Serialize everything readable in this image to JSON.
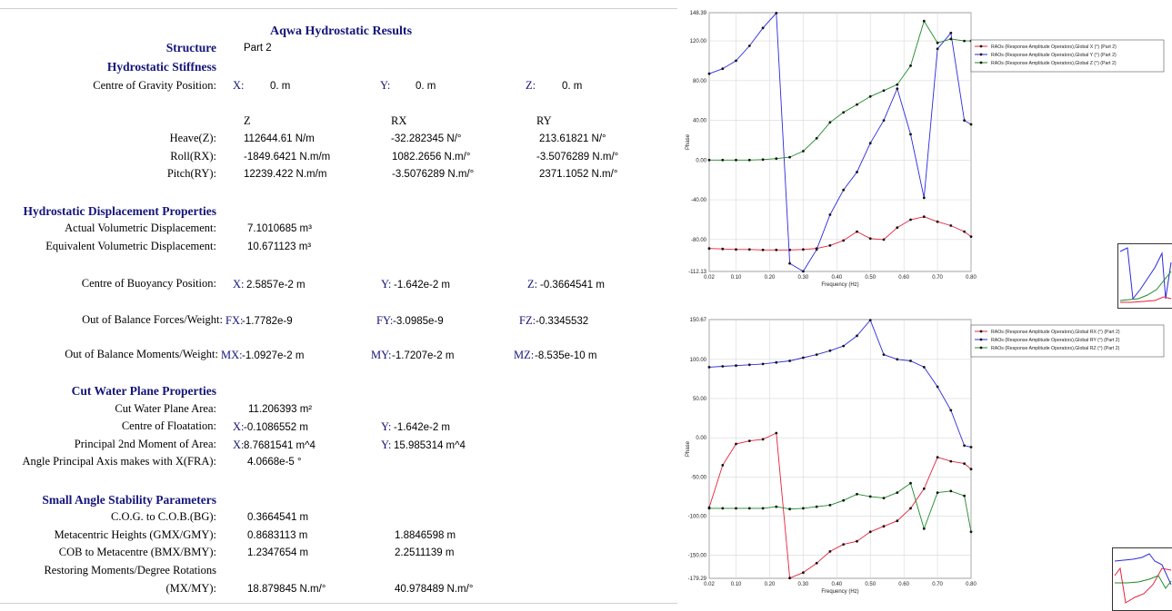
{
  "report": {
    "title": "Aqwa Hydrostatic Results",
    "structure_label": "Structure",
    "structure_value": "Part 2",
    "stiffness": {
      "heading": "Hydrostatic Stiffness",
      "cog_label": "Centre of Gravity Position:",
      "cog": {
        "x_label": "X:",
        "x": "0. m",
        "y_label": "Y:",
        "y": "0. m",
        "z_label": "Z:",
        "z": "0. m"
      },
      "col_headers": [
        "Z",
        "RX",
        "RY"
      ],
      "rows": [
        {
          "label": "Heave(Z):",
          "z": "112644.61 N/m",
          "rx": "-32.282345 N/°",
          "ry": "213.61821 N/°"
        },
        {
          "label": "Roll(RX):",
          "z": "-1849.6421 N.m/m",
          "rx": "1082.2656 N.m/°",
          "ry": "-3.5076289 N.m/°"
        },
        {
          "label": "Pitch(RY):",
          "z": "12239.422 N.m/m",
          "rx": "-3.5076289 N.m/°",
          "ry": "2371.1052 N.m/°"
        }
      ]
    },
    "displacement": {
      "heading": "Hydrostatic Displacement Properties",
      "actual_label": "Actual Volumetric Displacement:",
      "actual": "7.1010685 m³",
      "equiv_label": "Equivalent Volumetric Displacement:",
      "equiv": "10.671123 m³",
      "cob_label": "Centre of Buoyancy Position:",
      "cob": {
        "x_label": "X:",
        "x": "2.5857e-2 m",
        "y_label": "Y:",
        "y": "-1.642e-2 m",
        "z_label": "Z:",
        "z": "-0.3664541 m"
      },
      "forces_label": "Out of Balance Forces/Weight:",
      "forces": {
        "x_label": "FX:",
        "x": "-1.7782e-9",
        "y_label": "FY:",
        "y": "-3.0985e-9",
        "z_label": "FZ:",
        "z": "-0.3345532"
      },
      "moments_label": "Out of Balance Moments/Weight:",
      "moments": {
        "x_label": "MX:",
        "x": "-1.0927e-2 m",
        "y_label": "MY:",
        "y": "-1.7207e-2 m",
        "z_label": "MZ:",
        "z": "-8.535e-10 m"
      }
    },
    "waterplane": {
      "heading": "Cut Water Plane Properties",
      "area_label": "Cut Water Plane Area:",
      "area": "11.206393 m²",
      "cof_label": "Centre of Floatation:",
      "cof": {
        "x_label": "X:",
        "x": "-0.1086552 m",
        "y_label": "Y:",
        "y": "-1.642e-2 m"
      },
      "moment_label": "Principal 2nd Moment of Area:",
      "moment": {
        "x_label": "X:",
        "x": "8.7681541 m^4",
        "y_label": "Y:",
        "y": "15.985314 m^4"
      },
      "angle_label": "Angle Principal Axis makes with X(FRA):",
      "angle": "4.0668e-5 °"
    },
    "stability": {
      "heading": "Small Angle Stability Parameters",
      "bg_label": "C.O.G. to C.O.B.(BG):",
      "bg": "0.3664541 m",
      "gm_label": "Metacentric Heights (GMX/GMY):",
      "gmx": "0.8683113 m",
      "gmy": "1.8846598 m",
      "bm_label": "COB to Metacentre (BMX/BMY):",
      "bmx": "1.2347654 m",
      "bmy": "2.2511139 m",
      "restoring_label_1": "Restoring Moments/Degree Rotations",
      "restoring_label_2": "(MX/MY):",
      "mx": "18.879845 N.m/°",
      "my": "40.978489 N.m/°"
    }
  },
  "chart_data": [
    {
      "type": "line",
      "xlabel": "Frequency (Hz)",
      "ylabel": "Phase",
      "xlim": [
        0.02,
        0.8
      ],
      "ylim": [
        -112.13,
        148.39
      ],
      "x_ticks": [
        "0.02",
        "0.10",
        "0.20",
        "0.30",
        "0.40",
        "0.50",
        "0.60",
        "0.70",
        "0.80"
      ],
      "y_ticks": [
        "148.39",
        "120.00",
        "80.00",
        "40.00",
        "0.00",
        "-40.00",
        "-80.00",
        "-112.13"
      ],
      "legend_position": "top-right",
      "series": [
        {
          "name": "RAOs (Response Amplitude Operators),Global X (°) (Part 2)",
          "color": "#e8203a",
          "x": [
            0.02,
            0.06,
            0.1,
            0.14,
            0.18,
            0.22,
            0.26,
            0.3,
            0.34,
            0.38,
            0.42,
            0.46,
            0.5,
            0.54,
            0.58,
            0.62,
            0.66,
            0.7,
            0.74,
            0.78,
            0.8
          ],
          "y": [
            -89,
            -89.5,
            -90,
            -90,
            -90.5,
            -90.5,
            -90.5,
            -90,
            -89,
            -86,
            -81,
            -72,
            -79,
            -80,
            -68,
            -60,
            -57,
            -62,
            -66,
            -72,
            -77
          ]
        },
        {
          "name": "RAOs (Response Amplitude Operators),Global Y (°) (Part 2)",
          "color": "#2a2ae0",
          "x": [
            0.02,
            0.06,
            0.1,
            0.14,
            0.18,
            0.22,
            0.26,
            0.3,
            0.34,
            0.38,
            0.42,
            0.46,
            0.5,
            0.54,
            0.58,
            0.62,
            0.66,
            0.7,
            0.74,
            0.78,
            0.8
          ],
          "y": [
            87,
            92,
            100,
            115,
            133,
            148,
            -104,
            -112,
            -90,
            -55,
            -30,
            -12,
            17,
            40,
            72,
            26,
            -38,
            112,
            128,
            40,
            36
          ]
        },
        {
          "name": "RAOs (Response Amplitude Operators),Global Z (°) (Part 2)",
          "color": "#1f8a2a",
          "x": [
            0.02,
            0.06,
            0.1,
            0.14,
            0.18,
            0.22,
            0.26,
            0.3,
            0.34,
            0.38,
            0.42,
            0.46,
            0.5,
            0.54,
            0.58,
            0.62,
            0.66,
            0.7,
            0.74,
            0.78,
            0.8
          ],
          "y": [
            0,
            0,
            0,
            0,
            0.5,
            1.5,
            3,
            9,
            22,
            38,
            48,
            56,
            64,
            70,
            76,
            95,
            140,
            118,
            122,
            120,
            120
          ]
        }
      ]
    },
    {
      "type": "line",
      "xlabel": "Frequency (Hz)",
      "ylabel": "Phase",
      "xlim": [
        0.02,
        0.8
      ],
      "ylim": [
        -179.29,
        150.67
      ],
      "x_ticks": [
        "0.02",
        "0.10",
        "0.20",
        "0.30",
        "0.40",
        "0.50",
        "0.60",
        "0.70",
        "0.80"
      ],
      "y_ticks": [
        "150.67",
        "100.00",
        "50.00",
        "0.00",
        "-50.00",
        "-100.00",
        "-150.00",
        "-179.29"
      ],
      "legend_position": "top-right",
      "series": [
        {
          "name": "RAOs (Response Amplitude Operators),Global RX (°) (Part 2)",
          "color": "#e8203a",
          "x": [
            0.02,
            0.06,
            0.1,
            0.14,
            0.18,
            0.22,
            0.26,
            0.3,
            0.34,
            0.38,
            0.42,
            0.46,
            0.5,
            0.54,
            0.58,
            0.62,
            0.66,
            0.7,
            0.74,
            0.78,
            0.8
          ],
          "y": [
            -89,
            -35,
            -8,
            -4,
            -2,
            6,
            -179,
            -172,
            -160,
            -145,
            -136,
            -132,
            -120,
            -113,
            -106,
            -90,
            -65,
            -25,
            -30,
            -33,
            -40
          ]
        },
        {
          "name": "RAOs (Response Amplitude Operators),Global RY (°) (Part 2)",
          "color": "#2a2ae0",
          "x": [
            0.02,
            0.06,
            0.1,
            0.14,
            0.18,
            0.22,
            0.26,
            0.3,
            0.34,
            0.38,
            0.42,
            0.46,
            0.5,
            0.54,
            0.58,
            0.62,
            0.66,
            0.7,
            0.74,
            0.78,
            0.8
          ],
          "y": [
            90,
            91,
            92,
            93,
            94,
            96,
            98,
            102,
            106,
            111,
            117,
            130,
            150,
            106,
            100,
            98,
            90,
            65,
            35,
            -10,
            -12
          ]
        },
        {
          "name": "RAOs (Response Amplitude Operators),Global RZ (°) (Part 2)",
          "color": "#1f8a2a",
          "x": [
            0.02,
            0.06,
            0.1,
            0.14,
            0.18,
            0.22,
            0.26,
            0.3,
            0.34,
            0.38,
            0.42,
            0.46,
            0.5,
            0.54,
            0.58,
            0.62,
            0.66,
            0.7,
            0.74,
            0.78,
            0.8
          ],
          "y": [
            -90,
            -90,
            -90,
            -90,
            -90,
            -88,
            -91,
            -90,
            -88,
            -86,
            -80,
            -72,
            -75,
            -77,
            -70,
            -58,
            -116,
            -70,
            -68,
            -74,
            -120
          ]
        }
      ]
    }
  ]
}
